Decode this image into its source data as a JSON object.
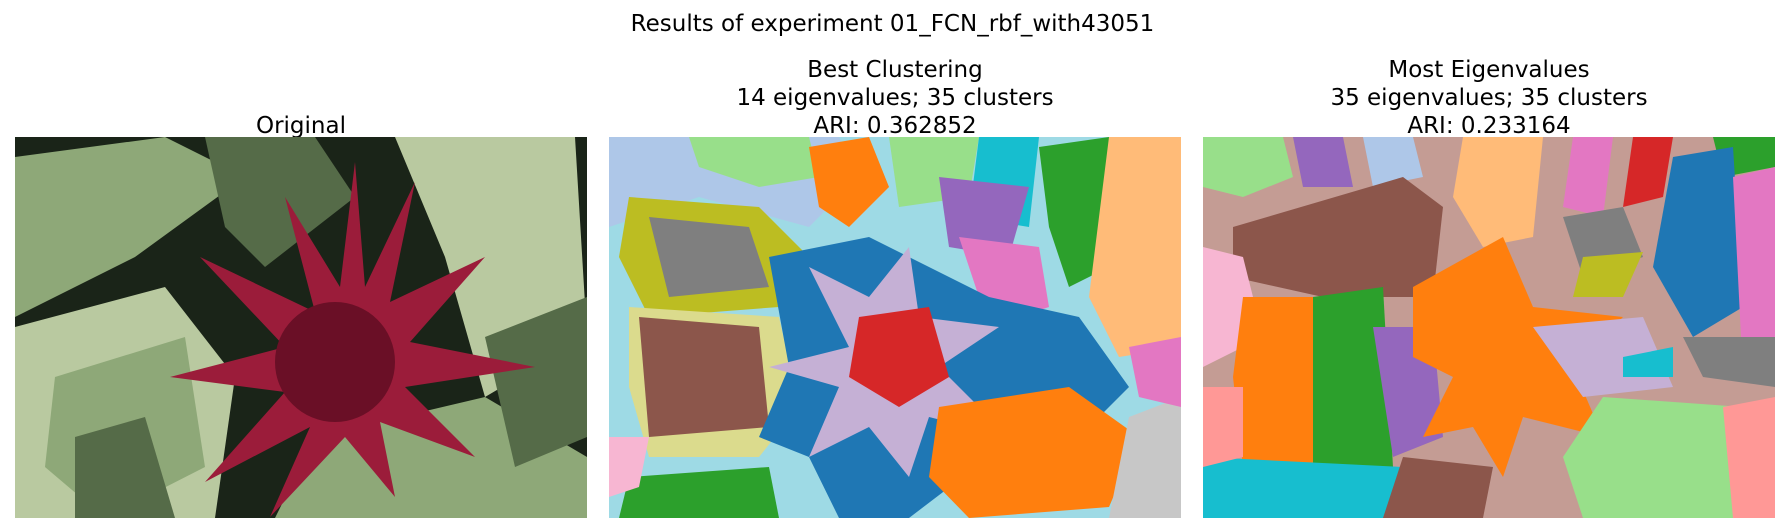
{
  "figure": {
    "suptitle": "Results of experiment 01_FCN_rbf_with43051"
  },
  "panels": [
    {
      "id": "original",
      "title_lines": [
        "Original"
      ],
      "image": {
        "content": "photo",
        "palette": {
          "background": "#1a2418",
          "leaf_light": "#b9c9a0",
          "leaf_mid": "#8ea878",
          "leaf_dark": "#556b48",
          "flower": "#9b1c3a",
          "flower_dark": "#6a0f26"
        }
      }
    },
    {
      "id": "best-clustering",
      "title_lines": [
        "Best Clustering",
        "14 eigenvalues; 35 clusters",
        "ARI: 0.362852"
      ],
      "eigenvalues": 14,
      "clusters": 35,
      "ari": 0.362852,
      "image": {
        "content": "cluster-map",
        "palette": {
          "base": "#9edae5",
          "blue": "#1f77b4",
          "lavender": "#c5b0d5",
          "red": "#d62728",
          "olive": "#bcbd22",
          "gray": "#7f7f7f",
          "brown": "#8c564b",
          "khaki": "#dbdb8d",
          "orange": "#ff7f0e",
          "green": "#2ca02c",
          "lightgreen": "#98df8a",
          "purple": "#9467bd",
          "pink": "#e377c2",
          "cyan": "#17becf",
          "lightblue": "#aec7e8",
          "peach": "#ffbb78",
          "lightgray": "#c7c7c7",
          "lightpink": "#f7b6d2"
        }
      }
    },
    {
      "id": "most-eigenvalues",
      "title_lines": [
        "Most Eigenvalues",
        "35 eigenvalues; 35 clusters",
        "ARI: 0.233164"
      ],
      "eigenvalues": 35,
      "clusters": 35,
      "ari": 0.233164,
      "image": {
        "content": "cluster-map",
        "palette": {
          "base": "#c49c94",
          "brown": "#8c564b",
          "orange": "#ff7f0e",
          "green": "#2ca02c",
          "blue": "#1f77b4",
          "purple": "#9467bd",
          "pink": "#e377c2",
          "lightpink": "#f7b6d2",
          "salmon": "#ff9896",
          "red": "#d62728",
          "gray": "#7f7f7f",
          "olive": "#bcbd22",
          "lightgreen": "#98df8a",
          "cyan": "#17becf",
          "lightcyan": "#9edae5",
          "lightblue": "#aec7e8",
          "peach": "#ffbb78",
          "khaki": "#dbdb8d",
          "lavender": "#c5b0d5"
        }
      }
    }
  ]
}
